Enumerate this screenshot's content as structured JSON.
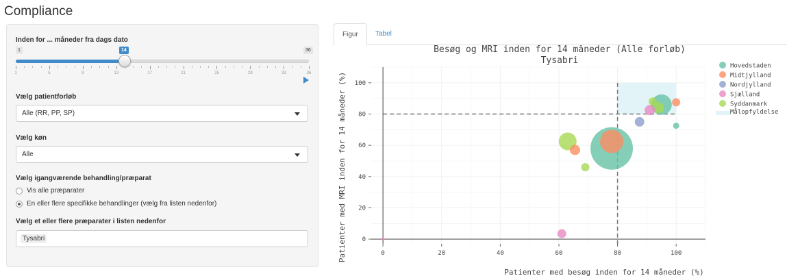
{
  "page": {
    "title": "Compliance"
  },
  "sidebar": {
    "slider": {
      "label": "Inden for ... måneder fra dags dato",
      "min": 1,
      "max": 36,
      "value": 14,
      "min_label": "1",
      "max_label": "36",
      "value_label": "14",
      "tick_labels": [
        "1",
        "5",
        "9",
        "13",
        "17",
        "21",
        "25",
        "29",
        "33",
        "36"
      ]
    },
    "course": {
      "label": "Vælg patientforløb",
      "value": "Alle (RR, PP, SP)"
    },
    "gender": {
      "label": "Vælg køn",
      "value": "Alle"
    },
    "treatment": {
      "label": "Vælg igangværende behandling/præparat",
      "options": [
        {
          "label": "Vis alle præparater",
          "selected": false
        },
        {
          "label": "En eller flere specifikke behandlinger (vælg fra listen nedenfor)",
          "selected": true
        }
      ]
    },
    "drugs": {
      "label": "Vælg et eller flere præparater i listen nedenfor",
      "selected": [
        "Tysabri"
      ]
    }
  },
  "tabs": [
    {
      "label": "Figur",
      "active": true
    },
    {
      "label": "Tabel",
      "active": false
    }
  ],
  "chart_data": {
    "type": "scatter",
    "title": "Besøg og MRI inden for 14 måneder (Alle forløb)",
    "subtitle": "Tysabri",
    "xlabel": "Patienter med besøg inden for 14 måneder (%)",
    "ylabel": "Patienter med MRI inden for 14 måneder (%)",
    "xlim": [
      -4,
      110
    ],
    "ylim": [
      -3,
      110
    ],
    "xticks": [
      0,
      20,
      40,
      60,
      80,
      100
    ],
    "yticks": [
      0,
      20,
      40,
      60,
      80,
      100
    ],
    "grid": true,
    "legend_position": "right",
    "target": {
      "label": "Målopfyldelse",
      "x": [
        80,
        100
      ],
      "y": [
        80,
        100
      ],
      "color": "#e3f4f8"
    },
    "reference_lines": {
      "x": 80,
      "y": 80
    },
    "series": [
      {
        "name": "Hovedstaden",
        "color": "#66c2a5",
        "points": [
          {
            "x": 78,
            "y": 58,
            "size": 62
          },
          {
            "x": 95,
            "y": 86,
            "size": 30
          },
          {
            "x": 100,
            "y": 72.5,
            "size": 9
          }
        ]
      },
      {
        "name": "Midtjylland",
        "color": "#fc8d62",
        "points": [
          {
            "x": 78,
            "y": 62.5,
            "size": 34
          },
          {
            "x": 65.5,
            "y": 57,
            "size": 15
          },
          {
            "x": 100,
            "y": 87.5,
            "size": 12
          }
        ]
      },
      {
        "name": "Nordjylland",
        "color": "#8da0cb",
        "points": [
          {
            "x": 87.5,
            "y": 75,
            "size": 14
          }
        ]
      },
      {
        "name": "Sjælland",
        "color": "#e78ac3",
        "points": [
          {
            "x": 61,
            "y": 3.5,
            "size": 13
          },
          {
            "x": 0,
            "y": 0,
            "size": 5
          },
          {
            "x": 91,
            "y": 82.5,
            "size": 15
          }
        ]
      },
      {
        "name": "Syddanmark",
        "color": "#a6d854",
        "points": [
          {
            "x": 63,
            "y": 62.5,
            "size": 26
          },
          {
            "x": 69,
            "y": 46,
            "size": 12
          },
          {
            "x": 92,
            "y": 88,
            "size": 12
          },
          {
            "x": 94,
            "y": 84,
            "size": 16
          }
        ]
      }
    ]
  }
}
